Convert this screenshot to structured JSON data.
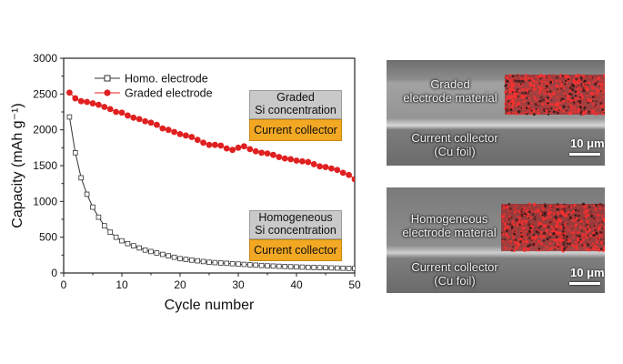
{
  "chart_data": {
    "type": "line",
    "xlabel": "Cycle number",
    "ylabel": "Capacity (mAh g⁻¹)",
    "xlim": [
      0,
      50
    ],
    "ylim": [
      0,
      3000
    ],
    "xticks": [
      "0",
      "10",
      "20",
      "30",
      "40",
      "50"
    ],
    "yticks": [
      "0",
      "500",
      "1000",
      "1500",
      "2000",
      "2500",
      "3000"
    ],
    "legend_position": "top-center",
    "series": [
      {
        "name": "Homo. electrode",
        "color": "#333333",
        "marker": "open-square",
        "x": [
          1,
          2,
          3,
          4,
          5,
          6,
          7,
          8,
          9,
          10,
          11,
          12,
          13,
          14,
          15,
          16,
          17,
          18,
          19,
          20,
          21,
          22,
          23,
          24,
          25,
          26,
          27,
          28,
          29,
          30,
          31,
          32,
          33,
          34,
          35,
          36,
          37,
          38,
          39,
          40,
          41,
          42,
          43,
          44,
          45,
          46,
          47,
          48,
          49,
          50
        ],
        "values": [
          2180,
          1680,
          1330,
          1100,
          920,
          780,
          660,
          570,
          500,
          450,
          410,
          380,
          350,
          320,
          300,
          280,
          260,
          240,
          220,
          200,
          190,
          180,
          170,
          160,
          150,
          145,
          140,
          135,
          130,
          125,
          120,
          115,
          110,
          105,
          100,
          97,
          94,
          91,
          88,
          85,
          82,
          79,
          77,
          75,
          73,
          71,
          69,
          67,
          65,
          63
        ]
      },
      {
        "name": "Graded electrode",
        "color": "#e02020",
        "marker": "filled-circle",
        "x": [
          1,
          2,
          3,
          4,
          5,
          6,
          7,
          8,
          9,
          10,
          11,
          12,
          13,
          14,
          15,
          16,
          17,
          18,
          19,
          20,
          21,
          22,
          23,
          24,
          25,
          26,
          27,
          28,
          29,
          30,
          31,
          32,
          33,
          34,
          35,
          36,
          37,
          38,
          39,
          40,
          41,
          42,
          43,
          44,
          45,
          46,
          47,
          48,
          49,
          50
        ],
        "values": [
          2520,
          2440,
          2400,
          2390,
          2370,
          2350,
          2320,
          2290,
          2250,
          2240,
          2200,
          2170,
          2150,
          2120,
          2100,
          2070,
          2020,
          2000,
          1970,
          1940,
          1920,
          1900,
          1860,
          1820,
          1790,
          1790,
          1780,
          1740,
          1720,
          1750,
          1770,
          1730,
          1700,
          1680,
          1670,
          1650,
          1620,
          1600,
          1590,
          1570,
          1560,
          1550,
          1520,
          1490,
          1480,
          1460,
          1440,
          1400,
          1370,
          1310
        ]
      }
    ],
    "insets": [
      {
        "top": "Graded",
        "middle": "Si concentration",
        "bottom": "Current collector"
      },
      {
        "top": "Homogeneous",
        "middle": "Si concentration",
        "bottom": "Current collector"
      }
    ]
  },
  "images": {
    "upper": {
      "material_label": [
        "Graded",
        "electrode material"
      ],
      "collector_label": [
        "Current collector",
        "(Cu foil)"
      ],
      "scale": "10 μm"
    },
    "lower": {
      "material_label": [
        "Homogeneous",
        "electrode material"
      ],
      "collector_label": [
        "Current collector",
        "(Cu foil)"
      ],
      "scale": "10 μm"
    }
  }
}
